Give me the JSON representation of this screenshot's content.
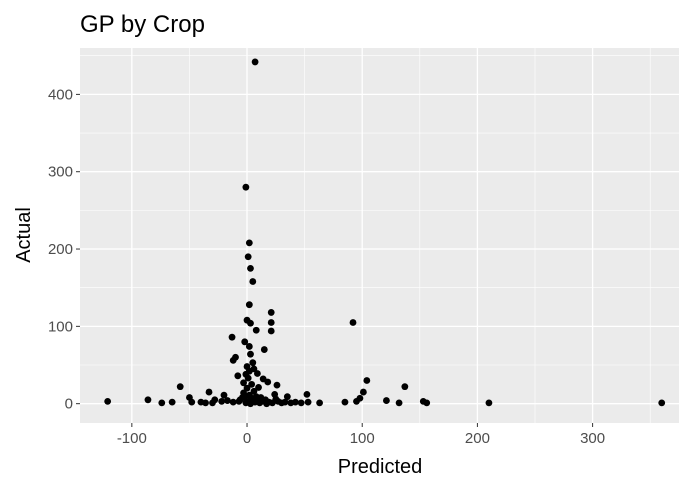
{
  "chart_data": {
    "type": "scatter",
    "title": "GP by Crop",
    "xlabel": "Predicted",
    "ylabel": "Actual",
    "xlim": [
      -145,
      375
    ],
    "ylim": [
      -25,
      460
    ],
    "x_ticks": [
      -100,
      0,
      100,
      200,
      300
    ],
    "x_tick_labels": [
      "-100",
      "0",
      "100",
      "200",
      "300"
    ],
    "y_ticks": [
      0,
      100,
      200,
      300,
      400
    ],
    "y_tick_labels": [
      "0",
      "100",
      "200",
      "300",
      "400"
    ],
    "grid": true,
    "colors": {
      "panel": "#ebebeb",
      "grid_major": "#ffffff",
      "points": "#000000",
      "tick_text": "#4d4d4d",
      "tick_mark": "#333333"
    },
    "points": [
      {
        "x": 7,
        "y": 442
      },
      {
        "x": -1,
        "y": 280
      },
      {
        "x": 2,
        "y": 208
      },
      {
        "x": 1,
        "y": 190
      },
      {
        "x": 3,
        "y": 175
      },
      {
        "x": 5,
        "y": 158
      },
      {
        "x": 2,
        "y": 128
      },
      {
        "x": 0,
        "y": 108
      },
      {
        "x": 3,
        "y": 104
      },
      {
        "x": 8,
        "y": 95
      },
      {
        "x": 21,
        "y": 118
      },
      {
        "x": 21,
        "y": 105
      },
      {
        "x": 21,
        "y": 94
      },
      {
        "x": 92,
        "y": 105
      },
      {
        "x": -13,
        "y": 86
      },
      {
        "x": -2,
        "y": 80
      },
      {
        "x": 2,
        "y": 74
      },
      {
        "x": 15,
        "y": 70
      },
      {
        "x": 3,
        "y": 64
      },
      {
        "x": -10,
        "y": 60
      },
      {
        "x": -12,
        "y": 56
      },
      {
        "x": 5,
        "y": 53
      },
      {
        "x": 0,
        "y": 48
      },
      {
        "x": 2,
        "y": 42
      },
      {
        "x": 9,
        "y": 39
      },
      {
        "x": -8,
        "y": 36
      },
      {
        "x": 14,
        "y": 32
      },
      {
        "x": 18,
        "y": 28
      },
      {
        "x": -3,
        "y": 27
      },
      {
        "x": 4,
        "y": 25
      },
      {
        "x": 26,
        "y": 24
      },
      {
        "x": 10,
        "y": 21
      },
      {
        "x": -58,
        "y": 22
      },
      {
        "x": 137,
        "y": 22
      },
      {
        "x": 104,
        "y": 30
      },
      {
        "x": 101,
        "y": 15
      },
      {
        "x": 98,
        "y": 7
      },
      {
        "x": 95,
        "y": 3
      },
      {
        "x": -33,
        "y": 15
      },
      {
        "x": 52,
        "y": 12
      },
      {
        "x": 35,
        "y": 9
      },
      {
        "x": 24,
        "y": 12
      },
      {
        "x": -20,
        "y": 11
      },
      {
        "x": -3,
        "y": 14
      },
      {
        "x": 6,
        "y": 16
      },
      {
        "x": 12,
        "y": 8
      },
      {
        "x": -50,
        "y": 8
      },
      {
        "x": -86,
        "y": 5
      },
      {
        "x": -121,
        "y": 3
      },
      {
        "x": -74,
        "y": 1
      },
      {
        "x": -65,
        "y": 2
      },
      {
        "x": -48,
        "y": 2
      },
      {
        "x": -40,
        "y": 2
      },
      {
        "x": -28,
        "y": 5
      },
      {
        "x": -22,
        "y": 3
      },
      {
        "x": -17,
        "y": 4
      },
      {
        "x": -12,
        "y": 2
      },
      {
        "x": -6,
        "y": 5
      },
      {
        "x": -1,
        "y": 1
      },
      {
        "x": 1,
        "y": 3
      },
      {
        "x": 3,
        "y": 0
      },
      {
        "x": 5,
        "y": 6
      },
      {
        "x": 7,
        "y": 2
      },
      {
        "x": 9,
        "y": 4
      },
      {
        "x": 11,
        "y": 1
      },
      {
        "x": 13,
        "y": 3
      },
      {
        "x": 16,
        "y": 5
      },
      {
        "x": 19,
        "y": 2
      },
      {
        "x": 22,
        "y": 1
      },
      {
        "x": 27,
        "y": 3
      },
      {
        "x": 30,
        "y": 1
      },
      {
        "x": 33,
        "y": 2
      },
      {
        "x": 38,
        "y": 1
      },
      {
        "x": 42,
        "y": 2
      },
      {
        "x": 47,
        "y": 1
      },
      {
        "x": 53,
        "y": 2
      },
      {
        "x": 63,
        "y": 1
      },
      {
        "x": 85,
        "y": 2
      },
      {
        "x": 121,
        "y": 4
      },
      {
        "x": 132,
        "y": 1
      },
      {
        "x": 153,
        "y": 3
      },
      {
        "x": 156,
        "y": 1
      },
      {
        "x": 210,
        "y": 1
      },
      {
        "x": 360,
        "y": 1
      },
      {
        "x": -2,
        "y": 9
      },
      {
        "x": 2,
        "y": 11
      },
      {
        "x": 4,
        "y": 7
      },
      {
        "x": -4,
        "y": 8
      },
      {
        "x": 0,
        "y": 20
      },
      {
        "x": 1,
        "y": 33
      },
      {
        "x": -1,
        "y": 38
      },
      {
        "x": 6,
        "y": 45
      },
      {
        "x": -7,
        "y": 3
      },
      {
        "x": 8,
        "y": 9
      },
      {
        "x": -30,
        "y": 1
      },
      {
        "x": -36,
        "y": 1
      },
      {
        "x": 17,
        "y": 0
      },
      {
        "x": 25,
        "y": 6
      }
    ]
  }
}
